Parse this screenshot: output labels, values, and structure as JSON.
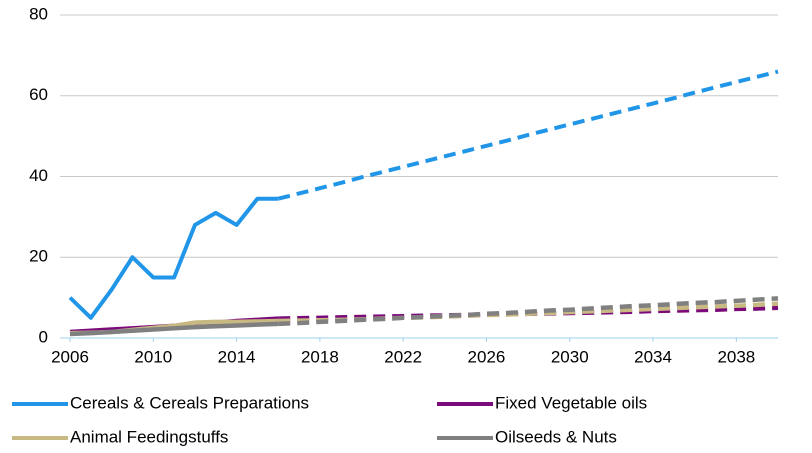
{
  "chart_data": {
    "type": "line",
    "x": [
      2006,
      2007,
      2008,
      2009,
      2010,
      2011,
      2012,
      2013,
      2014,
      2015,
      2016,
      2017,
      2018,
      2019,
      2020,
      2021,
      2022,
      2023,
      2024,
      2025,
      2026,
      2027,
      2028,
      2029,
      2030,
      2031,
      2032,
      2033,
      2034,
      2035,
      2036,
      2037,
      2038,
      2039,
      2040
    ],
    "dash_from_x": 2016,
    "series": [
      {
        "name": "Cereals & Cereals Preparations",
        "color": "#2196e8",
        "values": [
          10,
          5,
          12,
          20,
          15,
          15,
          28,
          31,
          28,
          34.5,
          34.5,
          35.8,
          37.1,
          38.4,
          39.8,
          41.1,
          42.4,
          43.7,
          45.0,
          46.3,
          47.6,
          48.9,
          50.3,
          51.6,
          52.9,
          54.2,
          55.5,
          56.8,
          58.1,
          59.4,
          60.8,
          62.1,
          63.4,
          64.7,
          66.0
        ]
      },
      {
        "name": "Fixed Vegetable oils",
        "color": "#7b0a7b",
        "values": [
          1.5,
          1.8,
          2.1,
          2.4,
          2.7,
          3.0,
          3.4,
          3.8,
          4.2,
          4.5,
          4.8,
          4.9,
          5.0,
          5.1,
          5.2,
          5.3,
          5.4,
          5.5,
          5.6,
          5.7,
          5.8,
          5.9,
          6.0,
          6.1,
          6.2,
          6.3,
          6.4,
          6.5,
          6.7,
          6.8,
          6.9,
          7.0,
          7.2,
          7.3,
          7.5
        ]
      },
      {
        "name": "Animal Feedingstuffs",
        "color": "#c8b882",
        "values": [
          1.2,
          1.3,
          1.5,
          2.0,
          2.5,
          3.0,
          3.8,
          4.0,
          4.0,
          4.1,
          4.2,
          4.3,
          4.4,
          4.5,
          4.6,
          4.8,
          5.0,
          5.1,
          5.3,
          5.5,
          5.7,
          5.8,
          6.0,
          6.2,
          6.4,
          6.6,
          6.8,
          7.0,
          7.2,
          7.4,
          7.6,
          7.8,
          8.0,
          8.2,
          8.5
        ]
      },
      {
        "name": "Oilseeds & Nuts",
        "color": "#808080",
        "values": [
          1.0,
          1.2,
          1.5,
          1.8,
          2.1,
          2.4,
          2.7,
          2.9,
          3.1,
          3.3,
          3.5,
          3.7,
          4.0,
          4.2,
          4.5,
          4.7,
          5.0,
          5.2,
          5.5,
          5.7,
          6.0,
          6.2,
          6.5,
          6.8,
          7.0,
          7.3,
          7.6,
          7.9,
          8.1,
          8.4,
          8.7,
          8.9,
          9.2,
          9.5,
          9.8
        ]
      }
    ],
    "xlim": [
      2006,
      2040
    ],
    "xticks": [
      2006,
      2010,
      2014,
      2018,
      2022,
      2026,
      2030,
      2034,
      2038
    ],
    "ylim": [
      0,
      80
    ],
    "yticks": [
      0,
      20,
      40,
      60,
      80
    ],
    "grid": true,
    "legend": "bottom"
  }
}
